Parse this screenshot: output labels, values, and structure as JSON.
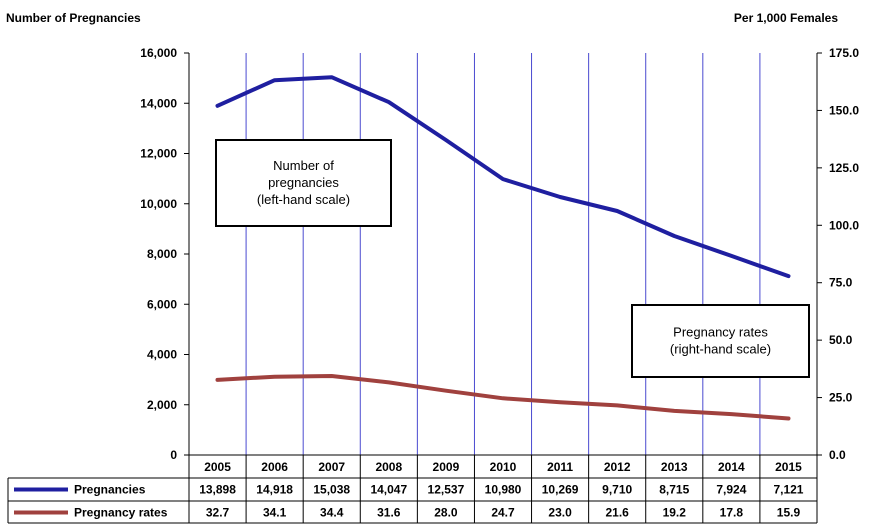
{
  "chart_data": {
    "type": "line",
    "left_axis_title": "Number of Pregnancies",
    "right_axis_title": "Per 1,000 Females",
    "categories": [
      "2005",
      "2006",
      "2007",
      "2008",
      "2009",
      "2010",
      "2011",
      "2012",
      "2013",
      "2014",
      "2015"
    ],
    "left_ticks": [
      "0",
      "2,000",
      "4,000",
      "6,000",
      "8,000",
      "10,000",
      "12,000",
      "14,000",
      "16,000"
    ],
    "right_ticks": [
      "0.0",
      "25.0",
      "50.0",
      "75.0",
      "100.0",
      "125.0",
      "150.0",
      "175.0"
    ],
    "left_ylim": [
      0,
      16000
    ],
    "right_ylim": [
      0,
      175
    ],
    "grid": "vertical",
    "series": [
      {
        "name": "Pregnancies",
        "axis": "left",
        "color": "#1f1fa0",
        "values": [
          13898,
          14918,
          15038,
          14047,
          12537,
          10980,
          10269,
          9710,
          8715,
          7924,
          7121
        ],
        "labels": [
          "13,898",
          "14,918",
          "15,038",
          "14,047",
          "12,537",
          "10,980",
          "10,269",
          "9,710",
          "8,715",
          "7,924",
          "7,121"
        ]
      },
      {
        "name": "Pregnancy rates",
        "axis": "right",
        "color": "#a0413e",
        "values": [
          32.7,
          34.1,
          34.4,
          31.6,
          28.0,
          24.7,
          23.0,
          21.6,
          19.2,
          17.8,
          15.9
        ],
        "labels": [
          "32.7",
          "34.1",
          "34.4",
          "31.6",
          "28.0",
          "24.7",
          "23.0",
          "21.6",
          "19.2",
          "17.8",
          "15.9"
        ]
      }
    ],
    "annotations": [
      {
        "lines": [
          "Number of",
          "pregnancies",
          "(left-hand scale)"
        ]
      },
      {
        "lines": [
          "Pregnancy rates",
          "(right-hand scale)"
        ]
      }
    ]
  }
}
